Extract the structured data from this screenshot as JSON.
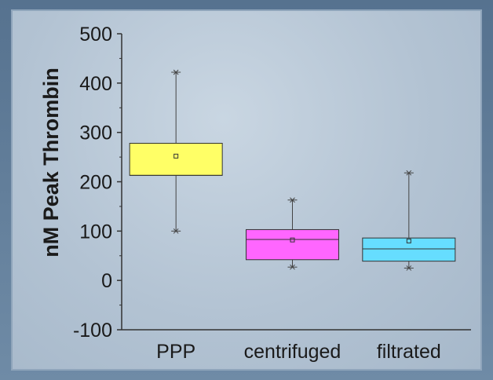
{
  "chart_data": {
    "type": "box",
    "title": "",
    "xlabel": "",
    "ylabel": "nM Peak Thrombin",
    "ylim": [
      -100,
      500
    ],
    "yticks": [
      "500",
      "400",
      "300",
      "200",
      "100",
      "0",
      "-100"
    ],
    "categories": [
      "PPP",
      "centrifuged",
      "filtrated"
    ],
    "boxes": [
      {
        "name": "PPP",
        "whisker_low": 100,
        "q1": 213,
        "median": 213,
        "q3": 278,
        "whisker_high": 422,
        "mean": 252,
        "color": "#ffff66"
      },
      {
        "name": "centrifuged",
        "whisker_low": 27,
        "q1": 42,
        "median": 83,
        "q3": 103,
        "whisker_high": 163,
        "mean": 82,
        "color": "#ff66ff"
      },
      {
        "name": "filtrated",
        "whisker_low": 25,
        "q1": 39,
        "median": 64,
        "q3": 86,
        "whisker_high": 218,
        "mean": 80,
        "color": "#66ddff"
      }
    ]
  }
}
